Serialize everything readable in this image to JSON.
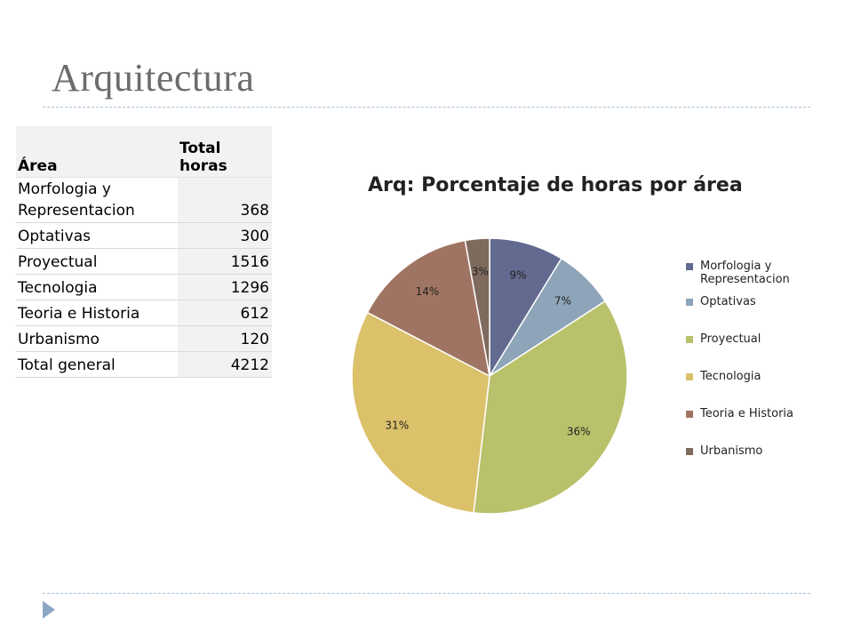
{
  "slide": {
    "title": "Arquitectura"
  },
  "table": {
    "header_area": "Área",
    "header_total": "Total horas",
    "rows": [
      {
        "area": "Morfologia y Representacion",
        "horas": "368"
      },
      {
        "area": "Optativas",
        "horas": "300"
      },
      {
        "area": "Proyectual",
        "horas": "1516"
      },
      {
        "area": "Tecnologia",
        "horas": "1296"
      },
      {
        "area": "Teoria e Historia",
        "horas": "612"
      },
      {
        "area": "Urbanismo",
        "horas": "120"
      },
      {
        "area": "Total general",
        "horas": "4212"
      }
    ]
  },
  "chart_data": {
    "type": "pie",
    "title": "Arq: Porcentaje de horas por área",
    "categories": [
      "Morfologia y Representacion",
      "Optativas",
      "Proyectual",
      "Tecnologia",
      "Teoria e Historia",
      "Urbanismo"
    ],
    "values": [
      368,
      300,
      1516,
      1296,
      612,
      120
    ],
    "percent_labels": [
      "9%",
      "7%",
      "36%",
      "31%",
      "14%",
      "3%"
    ],
    "colors": [
      "#636a8f",
      "#8ea4b8",
      "#b9c16a",
      "#dcc16b",
      "#a07462",
      "#7f6a5e"
    ],
    "start": "top, clockwise",
    "legend": "right"
  }
}
